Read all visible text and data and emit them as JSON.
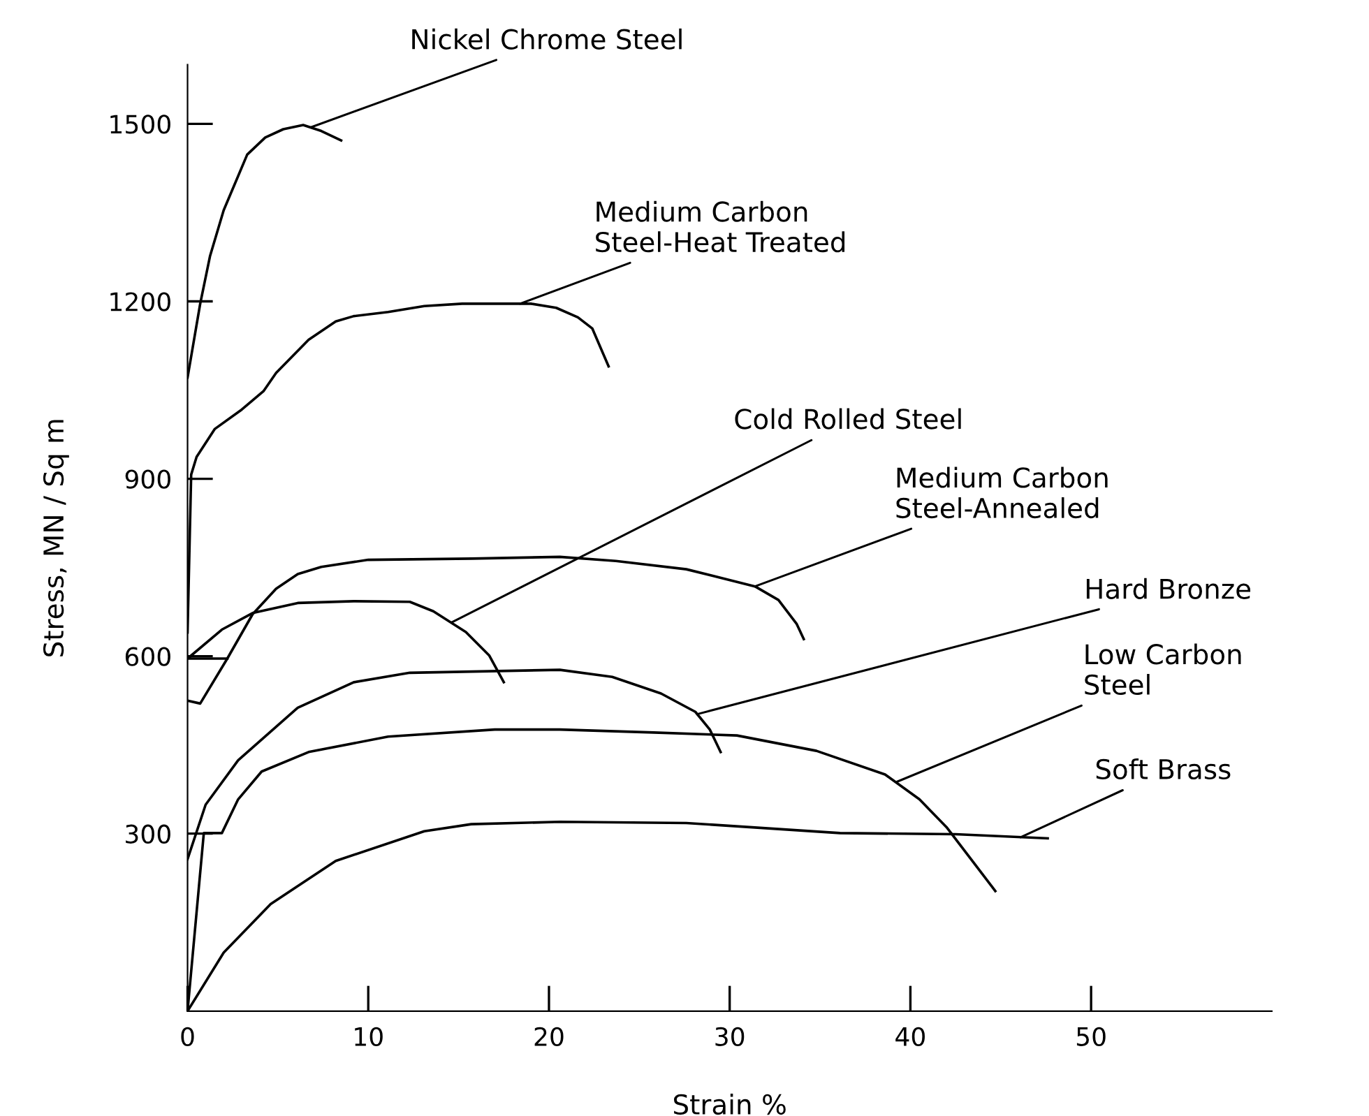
{
  "chart_data": {
    "type": "line",
    "xlabel": "Strain %",
    "ylabel": "Stress, MN / Sq m",
    "xlim": [
      0,
      60
    ],
    "ylim": [
      0,
      1600
    ],
    "xticks": [
      0,
      10,
      20,
      30,
      40,
      50
    ],
    "yticks": [
      300,
      600,
      900,
      1200,
      1500
    ],
    "grid": false,
    "legend": false,
    "marker": "none",
    "line_style": "solid",
    "series": [
      {
        "color": "#000000",
        "x": [
          0,
          0.7,
          1.24,
          2.0,
          3.3,
          4.3,
          5.3,
          6.4,
          7.4,
          8.5
        ],
        "values": [
          1071,
          1196,
          1276,
          1354,
          1448,
          1477,
          1491,
          1498,
          1488,
          1472
        ]
      },
      {
        "color": "#000000",
        "x": [
          0,
          0.2,
          0.5,
          1.5,
          3.0,
          4.2,
          4.9,
          6.7,
          8.2,
          9.2,
          11.1,
          13.1,
          15.2,
          19.0,
          20.4,
          21.6,
          22.4,
          23.3
        ],
        "values": [
          640,
          907,
          937,
          984,
          1017,
          1048,
          1079,
          1135,
          1166,
          1175,
          1182,
          1192,
          1196,
          1196,
          1189,
          1173,
          1154,
          1090
        ]
      },
      {
        "color": "#000000",
        "x": [
          2.2,
          0,
          1.9,
          3.6,
          6.1,
          9.2,
          12.3,
          13.6,
          15.4,
          16.7,
          17.5
        ],
        "values": [
          596,
          596,
          645,
          673,
          690,
          693,
          692,
          676,
          641,
          601,
          556
        ]
      },
      {
        "color": "#000000",
        "x": [
          0,
          0.7,
          2.2,
          3.6,
          4.9,
          6.1,
          7.4,
          10.0,
          15.7,
          20.6,
          23.7,
          27.6,
          31.4,
          32.7,
          33.7,
          34.1
        ],
        "values": [
          525,
          520,
          596,
          671,
          714,
          739,
          751,
          763,
          765,
          768,
          761,
          747,
          718,
          695,
          655,
          629
        ]
      },
      {
        "color": "#000000",
        "x": [
          0,
          1.0,
          2.8,
          6.1,
          9.2,
          12.3,
          20.6,
          23.5,
          26.2,
          28.1,
          28.9,
          29.5
        ],
        "values": [
          257,
          349,
          424,
          513,
          556,
          572,
          577,
          565,
          537,
          506,
          476,
          438
        ]
      },
      {
        "color": "#000000",
        "x": [
          0,
          0.9,
          1.9,
          2.8,
          4.1,
          6.7,
          11.1,
          17.0,
          20.6,
          25.8,
          30.4,
          34.8,
          38.6,
          40.5,
          42.0,
          43.3,
          44.7
        ],
        "values": [
          0,
          301,
          301,
          358,
          405,
          438,
          464,
          476,
          476,
          471,
          466,
          440,
          400,
          358,
          311,
          259,
          203
        ]
      },
      {
        "color": "#000000",
        "x": [
          0,
          2.0,
          4.6,
          8.2,
          13.1,
          15.7,
          20.6,
          27.6,
          36.1,
          42.5,
          47.6
        ],
        "values": [
          0,
          99,
          181,
          254,
          304,
          316,
          320,
          318,
          301,
          299,
          292
        ]
      }
    ],
    "annotations": [
      {
        "text": "Nickel Chrome Steel",
        "x": 6.8,
        "y": 1494
      },
      {
        "text": "Medium Carbon\nSteel-Heat Treated",
        "x": 18.4,
        "y": 1196
      },
      {
        "text": "Cold Rolled Steel",
        "x": 14.6,
        "y": 657
      },
      {
        "text": "Medium Carbon\nSteel-Annealed",
        "x": 31.4,
        "y": 718
      },
      {
        "text": "Hard Bronze",
        "x": 28.2,
        "y": 502
      },
      {
        "text": "Low Carbon\nSteel",
        "x": 39.2,
        "y": 387
      },
      {
        "text": "Soft Brass",
        "x": 46.1,
        "y": 294
      }
    ]
  }
}
